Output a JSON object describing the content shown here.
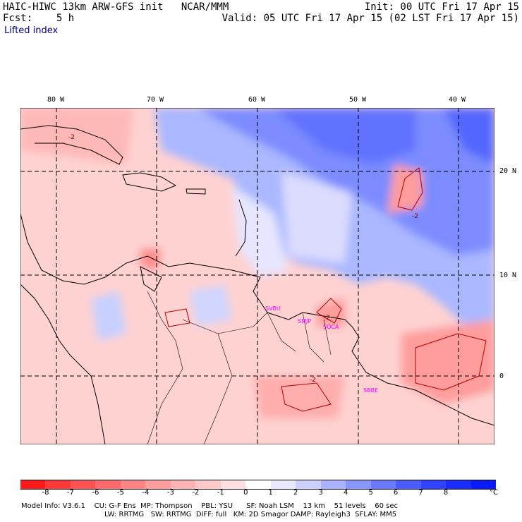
{
  "header": {
    "title": "HAIC-HIWC 13km ARW-GFS init   NCAR/MMM",
    "forecast": "Fcst:    5 h",
    "init": "Init: 00 UTC Fri 17 Apr 15",
    "valid": "Valid: 05 UTC Fri 17 Apr 15 (02 LST Fri 17 Apr 15)",
    "field": "Lifted index"
  },
  "axes": {
    "lon_labels": [
      "80 W",
      "70 W",
      "60 W",
      "50 W",
      "40 W"
    ],
    "lat_labels": [
      "20 N",
      "10 N",
      "0"
    ]
  },
  "stations": [
    "SVBU",
    "SMJP",
    "SOCA",
    "SBBE"
  ],
  "contour_labels": [
    "-2",
    "-2",
    "-2",
    "-2"
  ],
  "colorbar": {
    "ticks": [
      "-8",
      "-7",
      "-6",
      "-5",
      "-4",
      "-3",
      "-2",
      "-1",
      "0",
      "1",
      "2",
      "3",
      "4",
      "5",
      "6",
      "7",
      "8"
    ],
    "unit": "°C",
    "colors": [
      "#ff1a1a",
      "#ff3838",
      "#ff5252",
      "#ff6b6b",
      "#ff8585",
      "#ff9c9c",
      "#ffb3b3",
      "#ffc9c9",
      "#ffe0e0",
      "#ffffff",
      "#e8e8ff",
      "#ccd0ff",
      "#aab3ff",
      "#8a96ff",
      "#6a7aff",
      "#4a5cff",
      "#2e42ff",
      "#1a2dff",
      "#0a1aff"
    ]
  },
  "footer": {
    "line1": "Model Info: V3.6.1    CU: G-F Ens  MP: Thompson    PBL: YSU      SF: Noah LSM    13 km    51 levels    60 sec",
    "line2": "LW: RRTMG   SW: RRTMG  DIFF: full   KM: 2D Smagor DAMP: Rayleigh3  SFLAY: MM5"
  }
}
